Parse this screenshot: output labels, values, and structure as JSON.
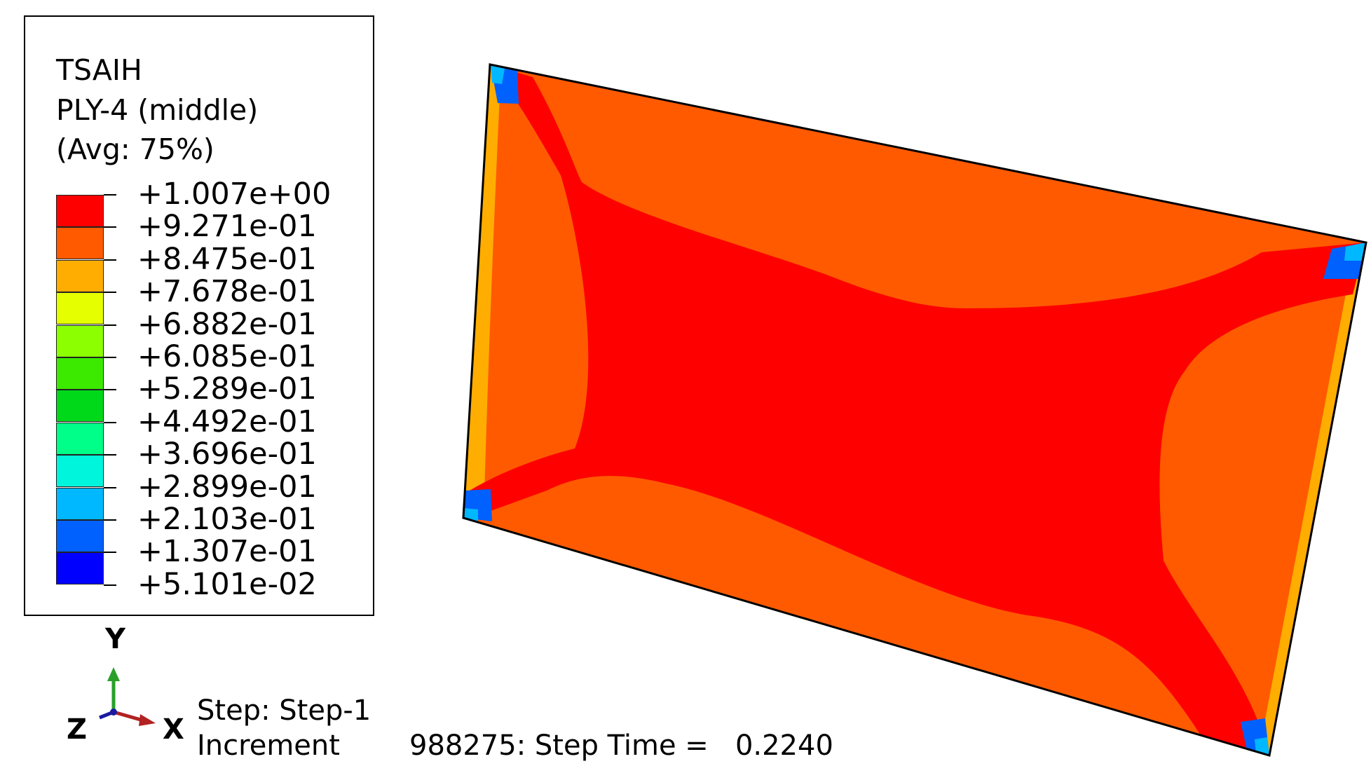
{
  "legend": {
    "title_lines": [
      "TSAIH",
      "PLY-4 (middle)",
      "(Avg: 75%)"
    ],
    "values": [
      "+1.007e+00",
      "+9.271e-01",
      "+8.475e-01",
      "+7.678e-01",
      "+6.882e-01",
      "+6.085e-01",
      "+5.289e-01",
      "+4.492e-01",
      "+3.696e-01",
      "+2.899e-01",
      "+2.103e-01",
      "+1.307e-01",
      "+5.101e-02"
    ],
    "colors": [
      "#ff0000",
      "#ff5a00",
      "#ffad00",
      "#e5ff00",
      "#8cff00",
      "#3cea00",
      "#00d81a",
      "#00ff88",
      "#00f5dd",
      "#00b8ff",
      "#0061ff",
      "#0000ff"
    ]
  },
  "triad": {
    "y_label": "Y",
    "x_label": "X",
    "z_label": "Z"
  },
  "step_info": {
    "step_line": "Step: Step-1",
    "increment_label": "Increment",
    "increment_value": "988275: Step Time =   0.2240"
  },
  "contour_colors": {
    "base": "#ff5a00",
    "high": "#ff0000",
    "edge": "#ffad00",
    "corner_dark": "#0061ff",
    "corner_light": "#00b8ff"
  }
}
